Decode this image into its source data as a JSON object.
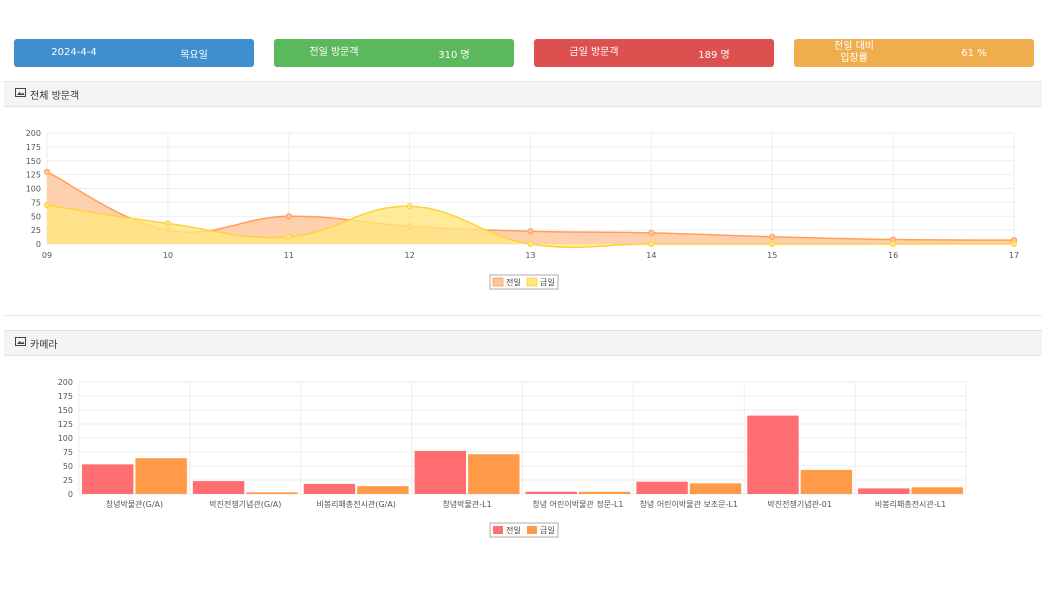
{
  "cards": [
    {
      "label": "2024-4-4",
      "value": "목요일",
      "color": "#3f8ed0"
    },
    {
      "label": "전일 방문객",
      "value": "310 명",
      "color": "#5cb85c"
    },
    {
      "label": "금일 방문객",
      "value": "189 명",
      "color": "#dd5050"
    },
    {
      "label": "전일 대비\n입장률",
      "value": "61 %",
      "color": "#f0ad4e"
    }
  ],
  "panels": {
    "visitors_title": "전체 방문객",
    "camera_title": "카메라",
    "chart_icon": "image-chart-icon"
  },
  "chart_data": [
    {
      "type": "area",
      "x": [
        "09",
        "10",
        "11",
        "12",
        "13",
        "14",
        "15",
        "16",
        "17"
      ],
      "ylim": [
        0,
        200
      ],
      "yticks": [
        0,
        25,
        50,
        75,
        100,
        125,
        150,
        175,
        200
      ],
      "grid": true,
      "legend_position": "bottom",
      "series": [
        {
          "name": "전일",
          "values": [
            130,
            25,
            50,
            32,
            23,
            20,
            13,
            8,
            7
          ],
          "fill": "#ffc49a",
          "stroke": "#ff9f5a"
        },
        {
          "name": "금일",
          "values": [
            70,
            37,
            13,
            68,
            0,
            0,
            0,
            0,
            0
          ],
          "fill": "#ffe680",
          "stroke": "#ffd23a"
        }
      ]
    },
    {
      "type": "bar",
      "categories": [
        "창녕박물관(G/A)",
        "박진전쟁기념관(G/A)",
        "비봉리패총전시관(G/A)",
        "창녕박물관-L1",
        "창녕 어린이박물관 정문-L1",
        "창녕 어린이박물관 보조문-L1",
        "박진전쟁기념관-01",
        "비봉리패총전시관-L1"
      ],
      "ylim": [
        0,
        200
      ],
      "yticks": [
        0,
        25,
        50,
        75,
        100,
        125,
        150,
        175,
        200
      ],
      "grid": true,
      "legend_position": "bottom",
      "series": [
        {
          "name": "전일",
          "values": [
            53,
            23,
            18,
            77,
            4,
            22,
            140,
            10
          ],
          "color": "#ff6f72"
        },
        {
          "name": "금일",
          "values": [
            64,
            3,
            14,
            71,
            4,
            19,
            43,
            12
          ],
          "color": "#ff9a48"
        }
      ]
    }
  ]
}
